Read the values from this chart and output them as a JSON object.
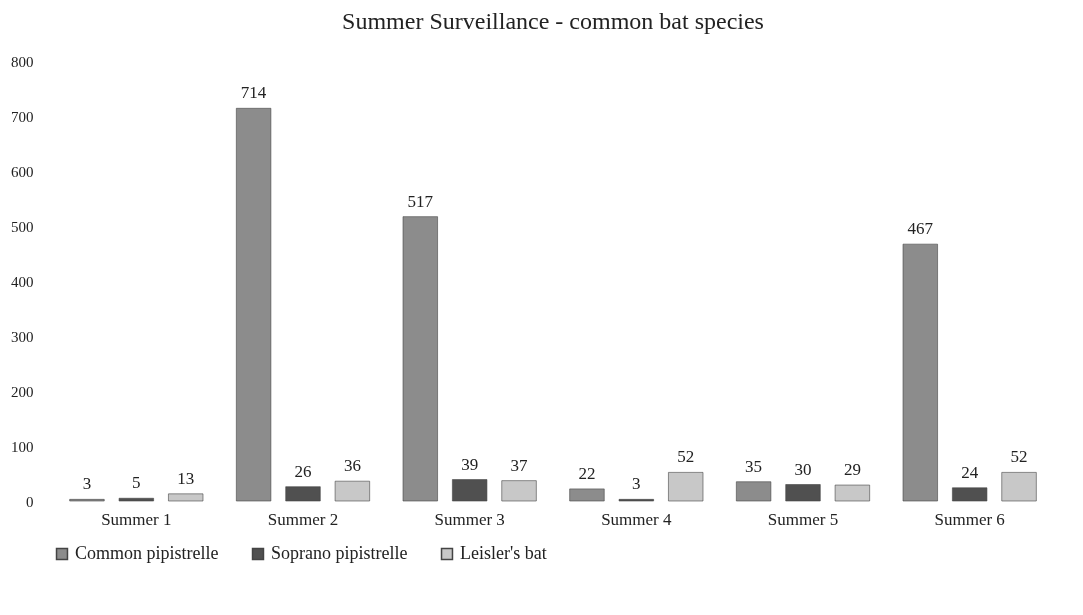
{
  "chart_data": {
    "type": "bar",
    "title": "Summer Surveillance - common bat species",
    "categories": [
      "Summer 1",
      "Summer 2",
      "Summer 3",
      "Summer 4",
      "Summer 5",
      "Summer 6"
    ],
    "series": [
      {
        "name": "Common pipistrelle",
        "color": "#8c8c8c",
        "values": [
          3,
          714,
          517,
          22,
          35,
          467
        ]
      },
      {
        "name": "Soprano pipistrelle",
        "color": "#505050",
        "values": [
          5,
          26,
          39,
          3,
          30,
          24
        ]
      },
      {
        "name": "Leisler's bat",
        "color": "#c8c8c8",
        "values": [
          13,
          36,
          37,
          52,
          29,
          52
        ]
      }
    ],
    "ylim": [
      0,
      800
    ],
    "yticks": [
      0,
      100,
      200,
      300,
      400,
      500,
      600,
      700,
      800
    ],
    "grid": false,
    "legend": "bottom",
    "data_labels": true
  }
}
